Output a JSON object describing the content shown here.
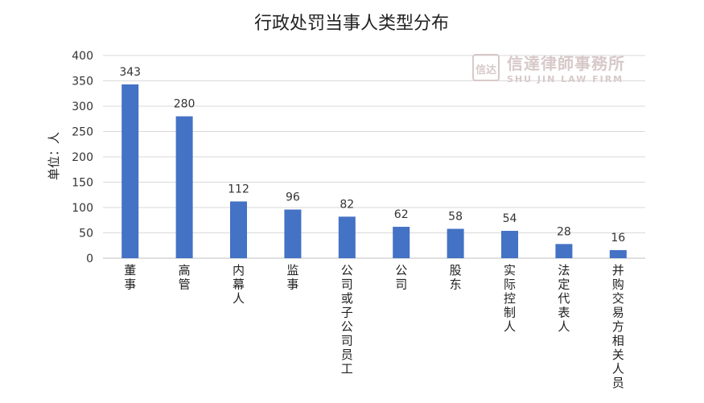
{
  "chart_data": {
    "type": "bar",
    "title": "行政处罚当事人类型分布",
    "ylabel": "单位：人",
    "xlabel": "",
    "ylim": [
      0,
      400
    ],
    "yticks": [
      0,
      50,
      100,
      150,
      200,
      250,
      300,
      350,
      400
    ],
    "grid": true,
    "legend": "none",
    "bar_color": "#4472C4",
    "categories": [
      "董事",
      "高管",
      "内幕人",
      "监事",
      "公司或子公司员工",
      "公司",
      "股东",
      "实际控制人",
      "法定代表人",
      "并购交易方相关人员"
    ],
    "values": [
      343,
      280,
      112,
      96,
      82,
      62,
      58,
      54,
      28,
      16
    ]
  },
  "watermark": {
    "seal": "信达",
    "name_cn": "信達律師事務所",
    "name_en": "SHU JIN LAW FIRM",
    "color": "#d8c9c9"
  }
}
